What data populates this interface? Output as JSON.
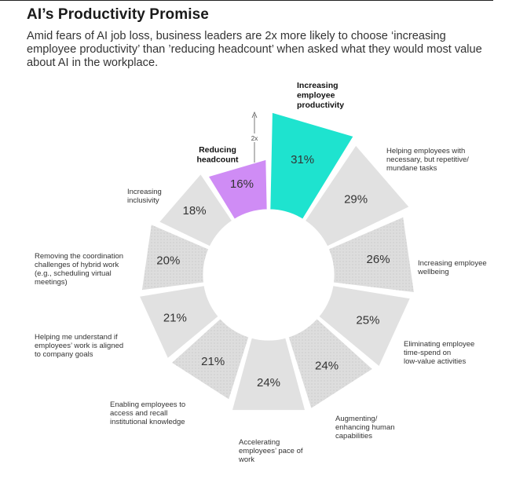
{
  "header": {
    "title": "AI’s Productivity Promise",
    "subtitle": "Amid fears of AI job loss, business leaders are 2x more likely to choose ‘increasing employee productivity’ than ’reducing headcount’ when asked what they would most value about AI in the workplace."
  },
  "chart_data": {
    "type": "pie",
    "style": "rose-donut",
    "annotation": "2x",
    "colors": {
      "highlight": "#1ee3cf",
      "secondary": "#cf8cf5",
      "default": "#e1e1e1",
      "dotted": "#d9d9d9"
    },
    "slices": [
      {
        "label": "Increasing employee productivity",
        "value": 31,
        "value_label": "31%",
        "highlight": "primary",
        "dotted": false
      },
      {
        "label": "Helping employees with necessary, but repetitive/ mundane tasks",
        "value": 29,
        "value_label": "29%",
        "highlight": "none",
        "dotted": false
      },
      {
        "label": "Increasing employee wellbeing",
        "value": 26,
        "value_label": "26%",
        "highlight": "none",
        "dotted": true
      },
      {
        "label": "Eliminating employee time-spend on low-value activities",
        "value": 25,
        "value_label": "25%",
        "highlight": "none",
        "dotted": false
      },
      {
        "label": "Augmenting/ enhancing human capabilities",
        "value": 24,
        "value_label": "24%",
        "highlight": "none",
        "dotted": true
      },
      {
        "label": "Accelerating employees’ pace of work",
        "value": 24,
        "value_label": "24%",
        "highlight": "none",
        "dotted": false
      },
      {
        "label": "Enabling employees to access and recall institutional knowledge",
        "value": 21,
        "value_label": "21%",
        "highlight": "none",
        "dotted": true
      },
      {
        "label": "Helping me understand if employees’ work is aligned to company goals",
        "value": 21,
        "value_label": "21%",
        "highlight": "none",
        "dotted": false
      },
      {
        "label": "Removing the coordination challenges of hybrid work (e.g., scheduling virtual meetings)",
        "value": 20,
        "value_label": "20%",
        "highlight": "none",
        "dotted": true
      },
      {
        "label": "Increasing inclusivity",
        "value": 18,
        "value_label": "18%",
        "highlight": "none",
        "dotted": false
      },
      {
        "label": "Reducing headcount",
        "value": 16,
        "value_label": "16%",
        "highlight": "secondary",
        "dotted": false
      }
    ]
  }
}
